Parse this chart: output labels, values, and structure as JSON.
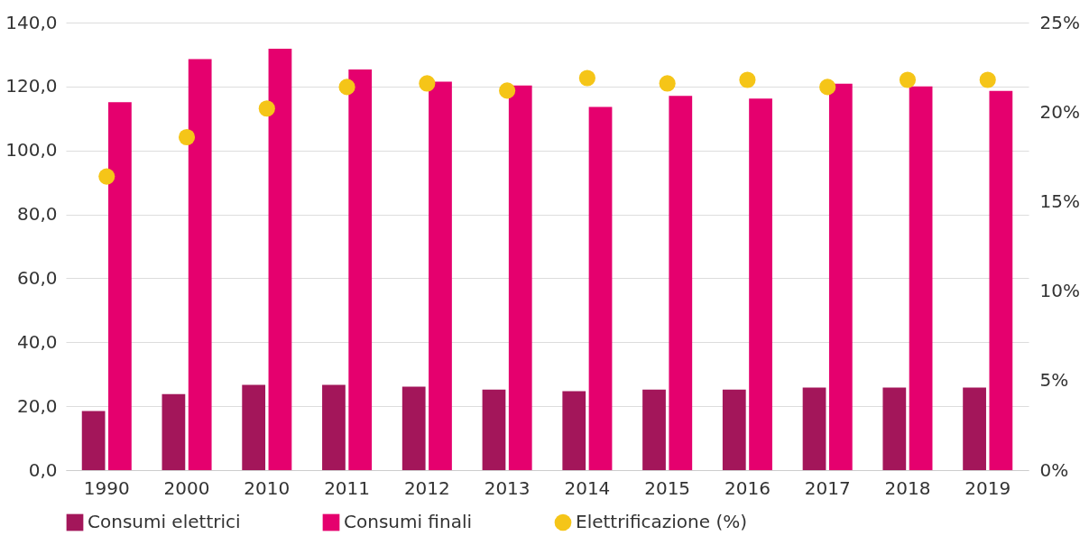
{
  "chart_data": {
    "type": "bar",
    "categories": [
      "1990",
      "2000",
      "2010",
      "2011",
      "2012",
      "2013",
      "2014",
      "2015",
      "2016",
      "2017",
      "2018",
      "2019"
    ],
    "series": [
      {
        "name": "Consumi elettrici",
        "color": "#a3165a",
        "values": [
          18.5,
          23.8,
          26.7,
          26.7,
          26.1,
          25.2,
          24.7,
          25.2,
          25.2,
          25.8,
          25.8,
          25.8
        ]
      },
      {
        "name": "Consumi finali",
        "color": "#e5006e",
        "values": [
          115.1,
          128.6,
          131.8,
          125.3,
          121.5,
          120.3,
          113.6,
          117.1,
          116.2,
          120.9,
          120.0,
          118.6
        ]
      },
      {
        "name": "Elettrificazione (%)",
        "type": "scatter",
        "axis": "y2",
        "color": "#f5c518",
        "values": [
          16.4,
          18.6,
          20.2,
          21.4,
          21.6,
          21.2,
          21.9,
          21.6,
          21.8,
          21.4,
          21.8,
          21.8
        ]
      }
    ],
    "ylim": [
      0,
      140
    ],
    "yticks": [
      {
        "value": 0,
        "label": "0,0"
      },
      {
        "value": 20,
        "label": "20,0"
      },
      {
        "value": 40,
        "label": "40,0"
      },
      {
        "value": 60,
        "label": "60,0"
      },
      {
        "value": 80,
        "label": "80,0"
      },
      {
        "value": 100,
        "label": "100,0"
      },
      {
        "value": 120,
        "label": "120,0"
      },
      {
        "value": 140,
        "label": "140,0"
      }
    ],
    "y2lim": [
      0,
      25
    ],
    "y2ticks": [
      {
        "value": 0,
        "label": "0%"
      },
      {
        "value": 5,
        "label": "5%"
      },
      {
        "value": 10,
        "label": "10%"
      },
      {
        "value": 15,
        "label": "15%"
      },
      {
        "value": 20,
        "label": "20%"
      },
      {
        "value": 25,
        "label": "25%"
      }
    ],
    "grid": "y",
    "legend": "bottom",
    "marker": "circle"
  }
}
